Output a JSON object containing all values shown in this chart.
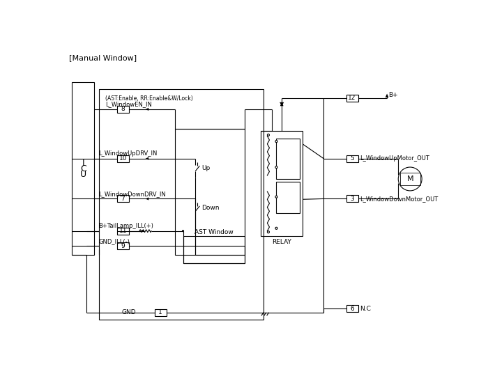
{
  "title": "[Manual Window]",
  "bg_color": "#ffffff",
  "line_color": "#000000",
  "figsize": [
    7.0,
    5.5
  ],
  "dpi": 100,
  "labels": {
    "title": "[Manual Window]",
    "signal_en": "L_WindowEN_IN",
    "signal_en_sub": "(AST:Enable, RR:Enable&W/Lock)",
    "signal_up": "L_WindowUpDRV_IN",
    "signal_down": "L_WindowDownDRV_IN",
    "b_plus_tail": "B+TailLamp_ILL(+)",
    "gnd_ill": "GND_ILL(-)",
    "gnd": "GND",
    "b_plus": "B+",
    "relay": "RELAY",
    "up_motor": "L_WindowUpMotor_OUT",
    "down_motor": "L_WindowDownMotor_OUT",
    "nc": "N.C",
    "up_sw": "Up",
    "down_sw": "Down",
    "ast_window": "AST Window",
    "motor": "M"
  }
}
